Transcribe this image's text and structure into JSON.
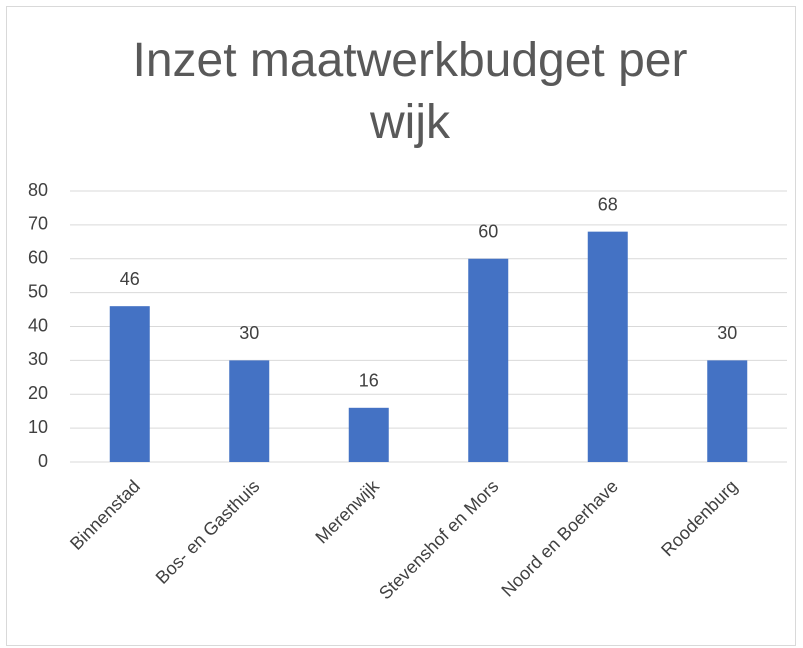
{
  "chart_data": {
    "type": "bar",
    "title": "Inzet maatwerkbudget per wijk",
    "categories": [
      "Binnenstad",
      "Bos- en Gasthuis",
      "Merenwijk",
      "Stevenshof en Mors",
      "Noord en Boerhave",
      "Roodenburg"
    ],
    "values": [
      46,
      30,
      16,
      60,
      68,
      30
    ],
    "color": "#4472c4",
    "ylim": [
      0,
      80
    ],
    "yticks": [
      0,
      10,
      20,
      30,
      40,
      50,
      60,
      70,
      80
    ],
    "grid": true
  }
}
